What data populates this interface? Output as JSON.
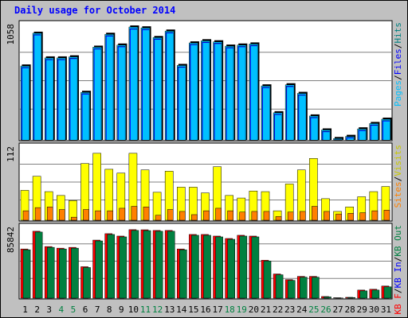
{
  "title": "Daily usage for October 2014",
  "colors": {
    "background": "#c0c0c0",
    "panel": "#ffffff",
    "hits": "#00c0ff",
    "files": "#0000ff",
    "pages": "#00c0ff",
    "visits": "#ffff00",
    "sites": "#ff8000",
    "kb_in": "#008040",
    "kb_out": "#ff0000",
    "kb_f": "#ff0000",
    "title": "#0000ff",
    "weekend_label": "#008040"
  },
  "chart_data": [
    {
      "type": "bar",
      "name": "hits-files-pages",
      "ymax_label": "1058",
      "ymax": 1058,
      "categories": [
        "1",
        "2",
        "3",
        "4",
        "5",
        "6",
        "7",
        "8",
        "9",
        "10",
        "11",
        "12",
        "13",
        "14",
        "15",
        "16",
        "17",
        "18",
        "19",
        "20",
        "21",
        "22",
        "23",
        "24",
        "25",
        "26",
        "27",
        "28",
        "29",
        "30",
        "31"
      ],
      "weekend_days": [
        "4",
        "5",
        "11",
        "12",
        "18",
        "19",
        "25",
        "26"
      ],
      "series": [
        {
          "name": "Hits",
          "values": [
            695,
            1000,
            770,
            770,
            780,
            450,
            870,
            990,
            890,
            1058,
            1050,
            960,
            1020,
            700,
            910,
            930,
            920,
            880,
            890,
            900,
            510,
            260,
            520,
            440,
            230,
            100,
            20,
            40,
            110,
            160,
            200
          ]
        },
        {
          "name": "Files",
          "values": [
            690,
            995,
            765,
            765,
            775,
            445,
            865,
            985,
            885,
            1050,
            1045,
            955,
            1015,
            695,
            905,
            925,
            915,
            875,
            885,
            895,
            505,
            255,
            515,
            435,
            225,
            95,
            18,
            38,
            105,
            155,
            195
          ]
        },
        {
          "name": "Pages",
          "values": [
            690,
            995,
            765,
            765,
            775,
            445,
            865,
            985,
            885,
            1050,
            1045,
            955,
            1015,
            695,
            905,
            925,
            915,
            875,
            885,
            895,
            505,
            255,
            515,
            435,
            225,
            95,
            18,
            38,
            105,
            155,
            195
          ]
        }
      ],
      "legend": [
        "Pages",
        "/",
        "Files",
        "/",
        "Hits"
      ]
    },
    {
      "type": "bar",
      "name": "visits-sites",
      "ymax_label": "112",
      "ymax": 112,
      "categories": [
        "1",
        "2",
        "3",
        "4",
        "5",
        "6",
        "7",
        "8",
        "9",
        "10",
        "11",
        "12",
        "13",
        "14",
        "15",
        "16",
        "17",
        "18",
        "19",
        "20",
        "21",
        "22",
        "23",
        "24",
        "25",
        "26",
        "27",
        "28",
        "29",
        "30",
        "31"
      ],
      "series": [
        {
          "name": "Visits",
          "values": [
            48,
            70,
            46,
            40,
            32,
            90,
            106,
            81,
            75,
            106,
            80,
            45,
            78,
            53,
            53,
            44,
            85,
            40,
            36,
            47,
            46,
            16,
            58,
            80,
            98,
            35,
            15,
            22,
            38,
            46,
            54
          ]
        },
        {
          "name": "Sites",
          "values": [
            16,
            21,
            22,
            18,
            6,
            18,
            16,
            16,
            20,
            23,
            22,
            9,
            18,
            15,
            10,
            16,
            20,
            16,
            14,
            15,
            15,
            7,
            14,
            15,
            23,
            15,
            11,
            12,
            13,
            16,
            17
          ]
        }
      ],
      "legend": [
        "Sites",
        "/",
        "Visits"
      ]
    },
    {
      "type": "bar",
      "name": "kbytes",
      "ymax_label": "85842",
      "ymax": 85842,
      "categories": [
        "1",
        "2",
        "3",
        "4",
        "5",
        "6",
        "7",
        "8",
        "9",
        "10",
        "11",
        "12",
        "13",
        "14",
        "15",
        "16",
        "17",
        "18",
        "19",
        "20",
        "21",
        "22",
        "23",
        "24",
        "25",
        "26",
        "27",
        "28",
        "29",
        "30",
        "31"
      ],
      "series": [
        {
          "name": "KB F",
          "values": [
            0,
            0,
            0,
            0,
            0,
            0,
            0,
            0,
            0,
            0,
            0,
            0,
            0,
            0,
            0,
            0,
            0,
            0,
            0,
            0,
            0,
            0,
            0,
            0,
            0,
            0,
            0,
            0,
            0,
            0,
            0
          ]
        },
        {
          "name": "KB Out",
          "values": [
            62000,
            84000,
            65000,
            63000,
            64000,
            40000,
            73000,
            81000,
            78000,
            86000,
            85842,
            85000,
            85000,
            62000,
            80000,
            80000,
            78000,
            75000,
            79000,
            78000,
            48000,
            31000,
            24000,
            28000,
            28000,
            3000,
            1500,
            2000,
            11000,
            12000,
            16000
          ]
        },
        {
          "name": "KB In",
          "values": [
            61000,
            83000,
            64000,
            62000,
            63000,
            39000,
            72000,
            80000,
            77000,
            85000,
            84800,
            84000,
            84000,
            61000,
            79000,
            79000,
            77000,
            74000,
            78000,
            77000,
            47000,
            30000,
            23000,
            27000,
            27000,
            2500,
            1200,
            1800,
            10000,
            11000,
            15000
          ]
        }
      ],
      "legend": [
        "KB F",
        "/",
        "KB In",
        "/",
        "KB Out"
      ]
    }
  ]
}
